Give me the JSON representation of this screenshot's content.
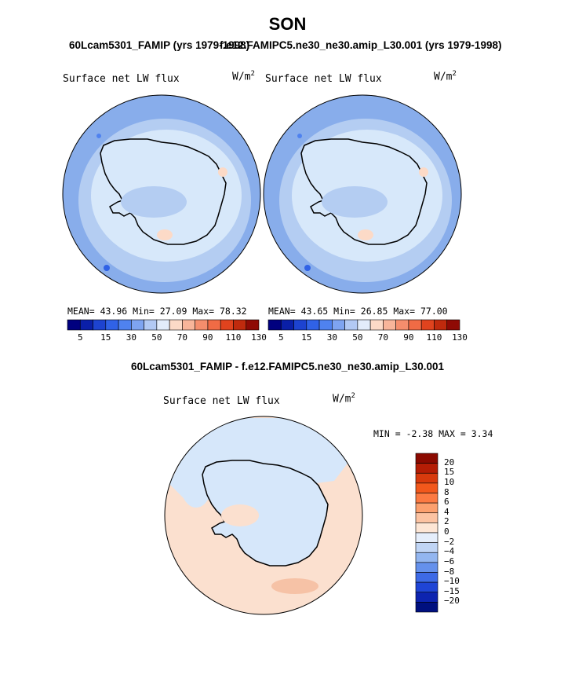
{
  "page": {
    "main_title": "SON",
    "left_case_title": "60Lcam5301_FAMIP (yrs 1979-1998)",
    "right_case_title": "f.e12.FAMIPC5.ne30_ne30.amip_L30.001 (yrs 1979-1998)",
    "diff_title": "60Lcam5301_FAMIP - f.e12.FAMIPC5.ne30_ne30.amip_L30.001"
  },
  "colors": {
    "pole_fill": "#d7e8fa",
    "midlat_fill": "#b4cdf2",
    "outer_fill": "#88adeb",
    "diff_positive": "#fbe0cf",
    "diff_negative": "#d6e7fa",
    "coast": "#000000"
  },
  "chart_data": [
    {
      "type": "heatmap",
      "projection": "south-polar-stereographic",
      "case": "60Lcam5301_FAMIP (yrs 1979-1998)",
      "label": "Surface net LW flux",
      "units": "W/m",
      "units_sup": "2",
      "stats": {
        "mean_label": "MEAN=",
        "mean": "43.96",
        "min_label": "Min=",
        "min": "27.09",
        "max_label": "Max=",
        "max": "78.32"
      },
      "colorbar": {
        "levels": [
          "5",
          "15",
          "30",
          "50",
          "70",
          "90",
          "110",
          "130"
        ],
        "colors": [
          "#00007f",
          "#0a1fa8",
          "#1d43d0",
          "#3062e6",
          "#4f82ef",
          "#7ea4f1",
          "#b2c9f4",
          "#e2ecfb",
          "#fcdac7",
          "#f8b59a",
          "#f58e6d",
          "#f06b45",
          "#e0431e",
          "#c02a0d",
          "#8f0a05"
        ]
      }
    },
    {
      "type": "heatmap",
      "projection": "south-polar-stereographic",
      "case": "f.e12.FAMIPC5.ne30_ne30.amip_L30.001 (yrs 1979-1998)",
      "label": "Surface net LW flux",
      "units": "W/m",
      "units_sup": "2",
      "stats": {
        "mean_label": "MEAN=",
        "mean": "43.65",
        "min_label": "Min=",
        "min": "26.85",
        "max_label": "Max=",
        "max": "77.00"
      },
      "colorbar": {
        "levels": [
          "5",
          "15",
          "30",
          "50",
          "70",
          "90",
          "110",
          "130"
        ],
        "colors": [
          "#00007f",
          "#0a1fa8",
          "#1d43d0",
          "#3062e6",
          "#4f82ef",
          "#7ea4f1",
          "#b2c9f4",
          "#e2ecfb",
          "#fcdac7",
          "#f8b59a",
          "#f58e6d",
          "#f06b45",
          "#e0431e",
          "#c02a0d",
          "#8f0a05"
        ]
      }
    },
    {
      "type": "heatmap",
      "projection": "south-polar-stereographic",
      "case": "60Lcam5301_FAMIP - f.e12.FAMIPC5.ne30_ne30.amip_L30.001",
      "label": "Surface net LW flux",
      "units": "W/m",
      "units_sup": "2",
      "stats": {
        "min_label": "MIN =",
        "min": "-2.38",
        "max_label": "MAX =",
        "max": "3.34"
      },
      "colorbar": {
        "levels": [
          "20",
          "15",
          "10",
          "8",
          "6",
          "4",
          "2",
          "0",
          "−2",
          "−4",
          "−6",
          "−8",
          "−10",
          "−15",
          "−20"
        ],
        "colors": [
          "#8b0a00",
          "#b51d05",
          "#d83a0d",
          "#f2581c",
          "#fc7a42",
          "#fca06e",
          "#fcc3a2",
          "#fde6d5",
          "#e5eefb",
          "#c0d5f5",
          "#93b6f0",
          "#6591ec",
          "#3d6ae6",
          "#1f45d6",
          "#0d24b0",
          "#00107f"
        ]
      }
    }
  ]
}
